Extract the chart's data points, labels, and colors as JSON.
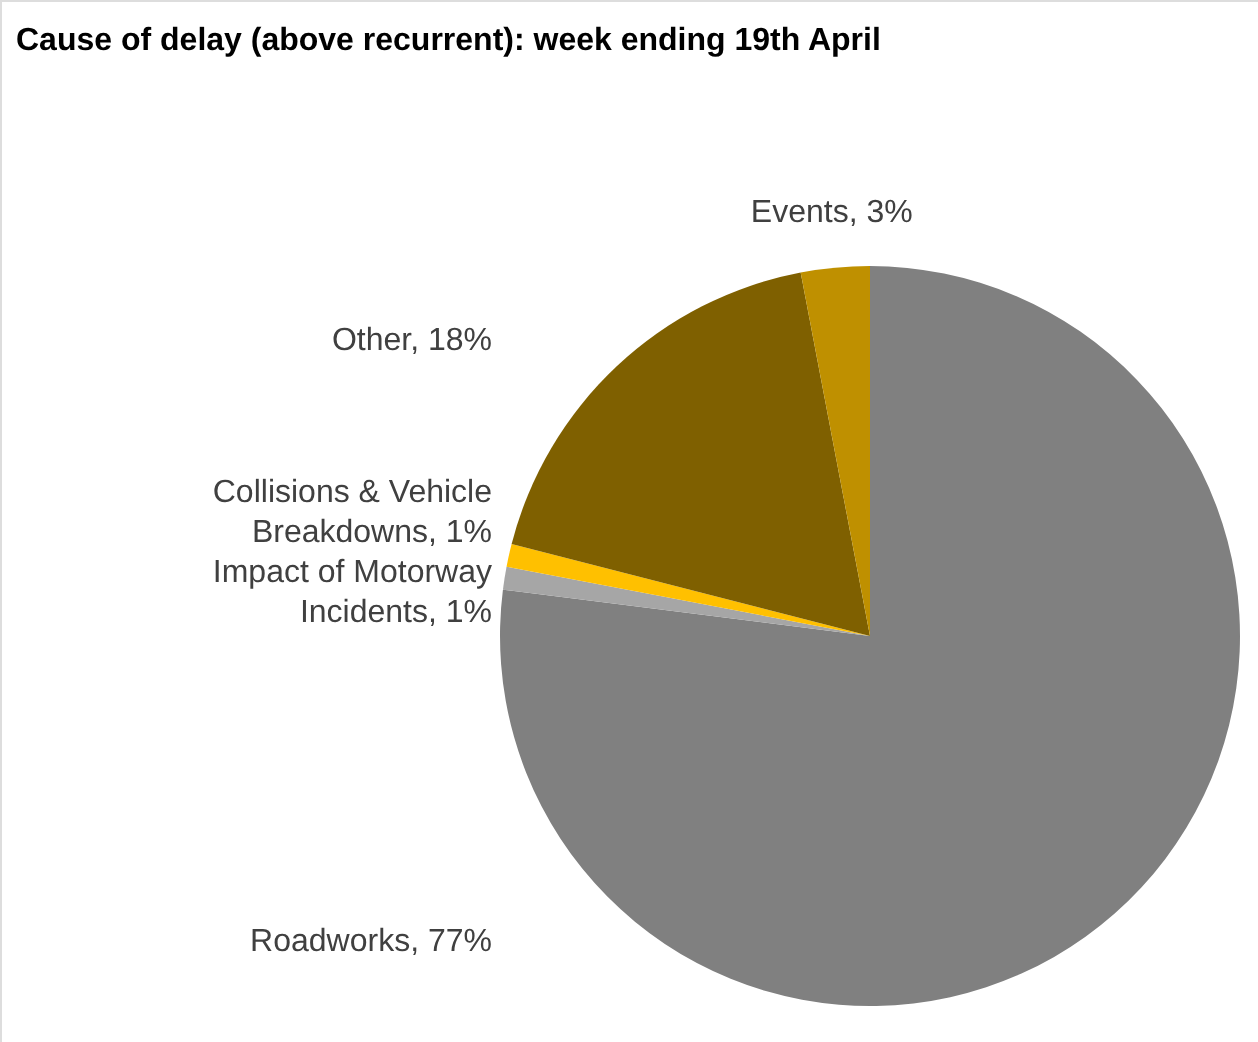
{
  "chart_data": {
    "type": "pie",
    "title": "Cause of delay (above recurrent): week ending 19th April",
    "categories": [
      "Roadworks",
      "Impact of Motorway Incidents",
      "Collisions & Vehicle Breakdowns",
      "Other",
      "Events"
    ],
    "values": [
      77,
      1,
      1,
      18,
      3
    ],
    "value_labels": [
      "77%",
      "1%",
      "1%",
      "18%",
      "3%"
    ],
    "colors": [
      "#808080",
      "#a6a6a6",
      "#ffc000",
      "#7f6000",
      "#bf9000"
    ]
  }
}
